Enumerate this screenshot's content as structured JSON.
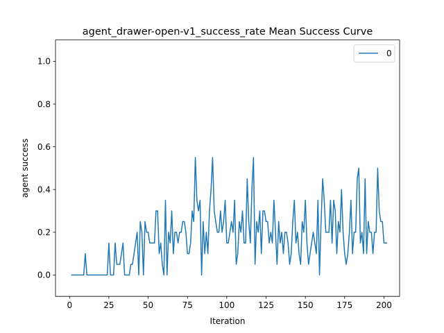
{
  "chart_data": {
    "type": "line",
    "title": "agent_drawer-open-v1_success_rate Mean Success Curve",
    "xlabel": "Iteration",
    "ylabel": "agent success",
    "xlim": [
      -8.95,
      209.95
    ],
    "ylim": [
      -0.1,
      1.1
    ],
    "xticks": [
      0,
      25,
      50,
      75,
      100,
      125,
      150,
      175,
      200
    ],
    "yticks": [
      0.0,
      0.2,
      0.4,
      0.6,
      0.8,
      1.0
    ],
    "xtick_labels": [
      "0",
      "25",
      "50",
      "75",
      "100",
      "125",
      "150",
      "175",
      "200"
    ],
    "ytick_labels": [
      "0.0",
      "0.2",
      "0.4",
      "0.6",
      "0.8",
      "1.0"
    ],
    "grid": false,
    "legend_position": "top-right",
    "series": [
      {
        "name": "0",
        "color": "#1f77b4",
        "x_start": 1,
        "x_step": 1,
        "values": [
          0.0,
          0.0,
          0.0,
          0.0,
          0.0,
          0.0,
          0.0,
          0.0,
          0.0,
          0.1,
          0.0,
          0.0,
          0.0,
          0.0,
          0.0,
          0.0,
          0.0,
          0.0,
          0.0,
          0.0,
          0.0,
          0.0,
          0.0,
          0.0,
          0.15,
          0.0,
          0.0,
          0.0,
          0.15,
          0.05,
          0.05,
          0.05,
          0.1,
          0.15,
          0.0,
          0.0,
          0.0,
          0.0,
          0.05,
          0.05,
          0.1,
          0.15,
          0.2,
          0.0,
          0.25,
          0.2,
          0.0,
          0.25,
          0.2,
          0.2,
          0.15,
          0.15,
          0.15,
          0.15,
          0.3,
          0.3,
          0.1,
          0.15,
          0.05,
          0.0,
          0.35,
          0.0,
          0.2,
          0.15,
          0.3,
          0.1,
          0.2,
          0.2,
          0.15,
          0.2,
          0.2,
          0.25,
          0.25,
          0.2,
          0.1,
          0.1,
          0.15,
          0.3,
          0.25,
          0.55,
          0.35,
          0.3,
          0.35,
          0.0,
          0.25,
          0.1,
          0.2,
          0.1,
          0.3,
          0.4,
          0.55,
          0.3,
          0.25,
          0.2,
          0.2,
          0.3,
          0.2,
          0.25,
          0.35,
          0.15,
          0.15,
          0.2,
          0.25,
          0.2,
          0.35,
          0.05,
          0.1,
          0.25,
          0.2,
          0.3,
          0.15,
          0.15,
          0.45,
          0.25,
          0.15,
          0.4,
          0.55,
          0.05,
          0.25,
          0.2,
          0.3,
          0.1,
          0.3,
          0.3,
          0.25,
          0.25,
          0.15,
          0.2,
          0.15,
          0.35,
          0.2,
          0.05,
          0.25,
          0.15,
          0.2,
          0.1,
          0.2,
          0.2,
          0.15,
          0.05,
          0.1,
          0.25,
          0.35,
          0.15,
          0.2,
          0.1,
          0.05,
          0.25,
          0.2,
          0.35,
          0.15,
          0.05,
          0.1,
          0.15,
          0.2,
          0.15,
          0.1,
          0.35,
          0.0,
          0.25,
          0.45,
          0.35,
          0.2,
          0.2,
          0.2,
          0.35,
          0.15,
          0.35,
          0.3,
          0.1,
          0.25,
          0.2,
          0.4,
          0.2,
          0.1,
          0.05,
          0.1,
          0.2,
          0.35,
          0.1,
          0.2,
          0.2,
          0.45,
          0.5,
          0.15,
          0.2,
          0.1,
          0.45,
          0.1,
          0.25,
          0.2,
          0.2,
          0.1,
          0.2,
          0.2,
          0.5,
          0.3,
          0.25,
          0.25,
          0.15,
          0.15,
          0.15
        ]
      }
    ]
  }
}
